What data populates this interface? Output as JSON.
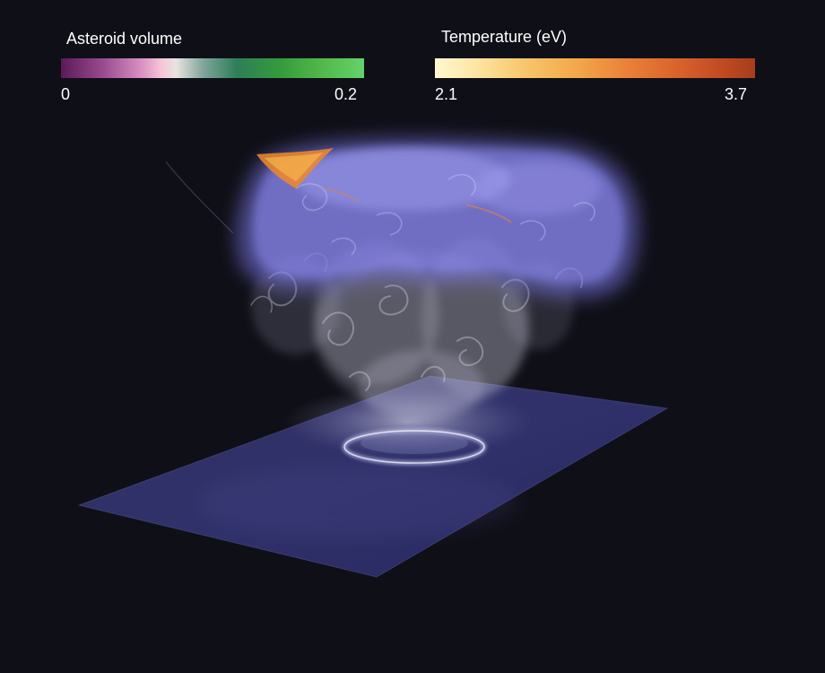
{
  "legends": {
    "asteroid": {
      "title": "Asteroid volume",
      "min_label": "0",
      "max_label": "0.2",
      "colors": [
        "#5a1a57",
        "#d68cc0",
        "#f6c4d8",
        "#2e7e58",
        "#63d36a"
      ]
    },
    "temperature": {
      "title": "Temperature (eV)",
      "min_label": "2.1",
      "max_label": "3.7",
      "colors": [
        "#fff8d0",
        "#f8c66b",
        "#ea8138",
        "#a63d1c"
      ]
    }
  },
  "scene": {
    "background": "#0f0f17",
    "plume_color": "#8a86f0",
    "smoke_color": "#d8d8e8",
    "ground_color": "#3b3c86",
    "hot_spot_color": "#f08a2a"
  }
}
